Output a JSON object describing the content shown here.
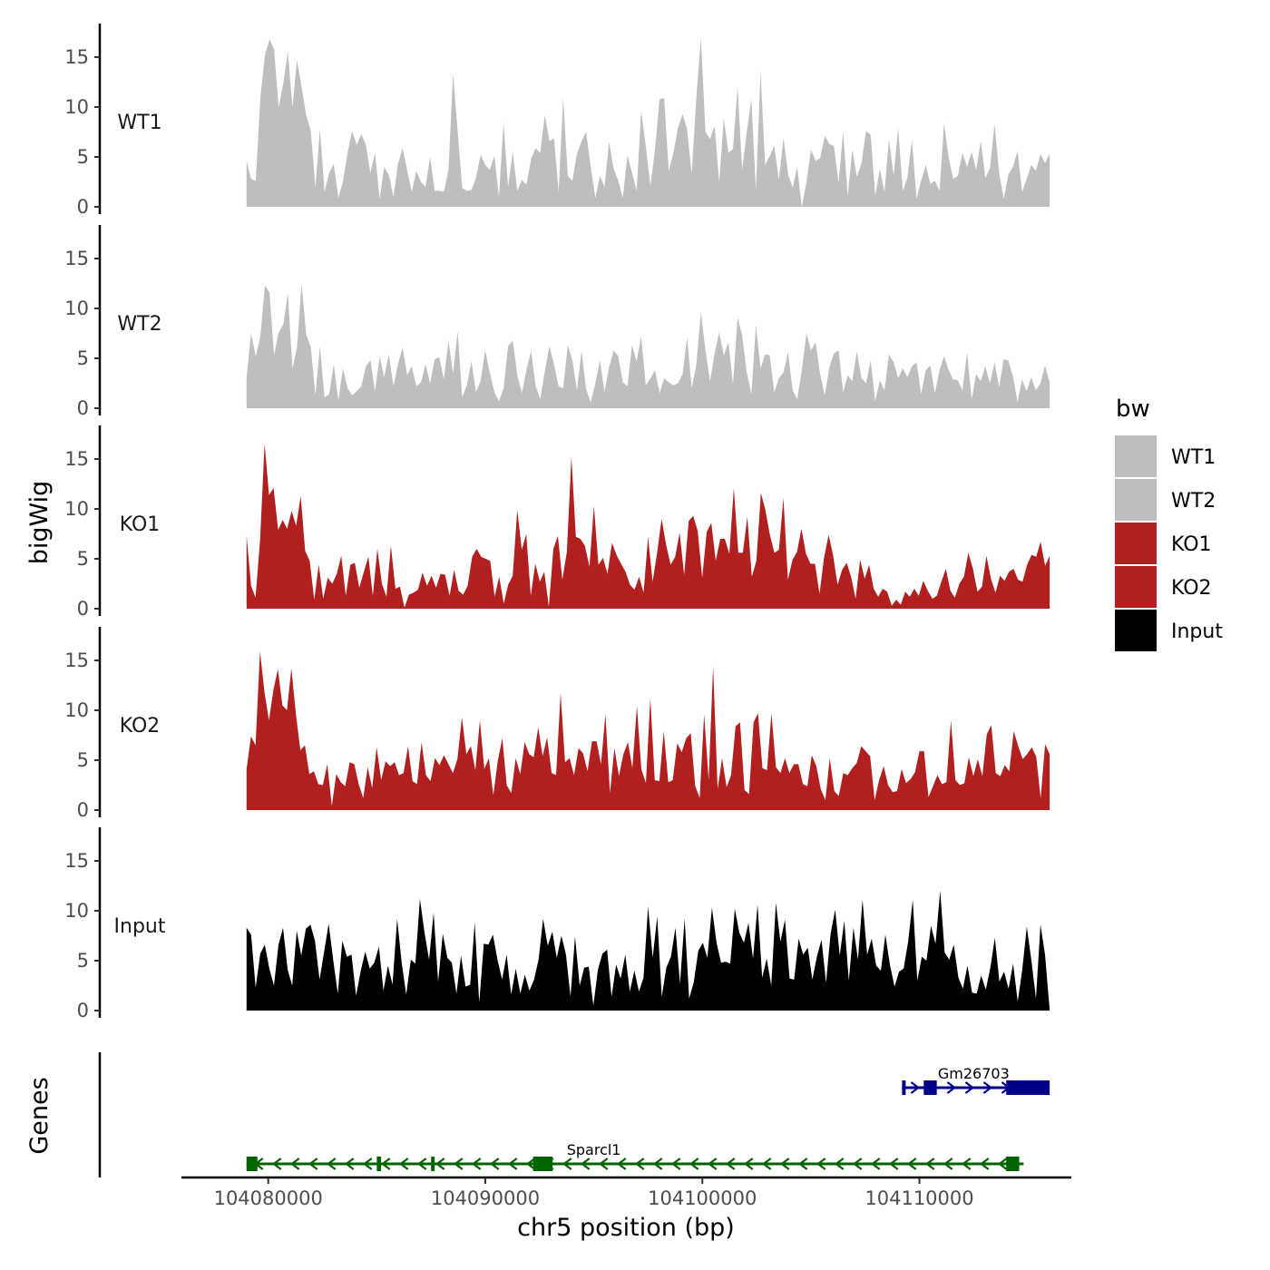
{
  "chart_data": {
    "type": "area",
    "ylabel": "bigWig",
    "genes_label": "Genes",
    "xlabel": "chr5 position (bp)",
    "xlim": [
      104076000,
      104117000
    ],
    "region": [
      104079000,
      104116000
    ],
    "x_ticks": [
      104080000,
      104090000,
      104100000,
      104110000
    ],
    "x_tick_labels": [
      "104080000",
      "104090000",
      "104100000",
      "104110000"
    ],
    "ylim": [
      0,
      18
    ],
    "y_ticks": [
      0,
      5,
      10,
      15
    ],
    "y_tick_labels": [
      "0",
      "5",
      "10",
      "15"
    ],
    "legend": {
      "title": "bw",
      "position": "right",
      "entries": [
        {
          "label": "WT1",
          "color": "#bebebe"
        },
        {
          "label": "WT2",
          "color": "#bebebe"
        },
        {
          "label": "KO1",
          "color": "#b21f1f"
        },
        {
          "label": "KO2",
          "color": "#b21f1f"
        },
        {
          "label": "Input",
          "color": "#000000"
        }
      ]
    },
    "series": [
      {
        "name": "WT1",
        "color": "#bebebe",
        "values": [
          4.6,
          2.8,
          2.6,
          10.9,
          15.2,
          16.8,
          15.8,
          10.0,
          12.4,
          15.5,
          10.0,
          14.7,
          12.0,
          9.2,
          7.6,
          1.9,
          7.8,
          1.5,
          3.4,
          4.3,
          0.9,
          2.5,
          5.4,
          7.6,
          6.2,
          7.3,
          6.2,
          3.4,
          5.4,
          0.8,
          4.0,
          3.2,
          1.0,
          4.3,
          5.9,
          3.7,
          1.5,
          3.6,
          2.5,
          2.0,
          5.0,
          1.6,
          1.6,
          1.5,
          3.7,
          13.3,
          7.6,
          1.9,
          1.6,
          1.7,
          2.9,
          5.2,
          4.2,
          3.7,
          5.1,
          1.0,
          8.4,
          2.0,
          5.5,
          1.6,
          2.7,
          2.2,
          4.8,
          5.9,
          5.4,
          9.2,
          6.6,
          6.9,
          1.5,
          10.9,
          3.1,
          2.6,
          5.3,
          6.6,
          7.5,
          4.0,
          0.9,
          3.1,
          2.0,
          6.5,
          3.8,
          2.6,
          0.9,
          5.2,
          3.4,
          1.6,
          9.6,
          6.1,
          2.1,
          5.7,
          10.8,
          10.9,
          3.6,
          5.4,
          7.9,
          9.3,
          7.8,
          3.3,
          10.8,
          16.9,
          7.5,
          6.8,
          8.1,
          2.4,
          8.9,
          5.4,
          5.8,
          12.0,
          3.7,
          7.5,
          10.8,
          1.7,
          13.6,
          4.2,
          5.1,
          6.1,
          2.7,
          6.9,
          3.3,
          1.9,
          4.0,
          0.0,
          2.5,
          5.7,
          4.6,
          4.9,
          7.1,
          6.3,
          6.1,
          2.4,
          7.6,
          1.1,
          5.7,
          3.0,
          4.4,
          7.6,
          7.2,
          1.1,
          3.8,
          1.5,
          6.8,
          3.1,
          7.9,
          1.6,
          2.9,
          6.7,
          0.8,
          2.6,
          4.2,
          2.3,
          2.6,
          1.6,
          8.4,
          4.9,
          2.8,
          3.1,
          5.4,
          4.0,
          5.5,
          3.7,
          6.6,
          2.9,
          3.9,
          8.3,
          3.4,
          0.8,
          3.2,
          4.0,
          5.6,
          1.5,
          2.8,
          4.2,
          3.6,
          5.3,
          4.4,
          5.3
        ]
      },
      {
        "name": "WT2",
        "color": "#bebebe",
        "values": [
          3.1,
          7.5,
          5.2,
          7.2,
          12.3,
          11.6,
          5.3,
          7.6,
          8.4,
          11.5,
          4.0,
          6.1,
          12.5,
          7.4,
          6.1,
          1.3,
          6.2,
          1.1,
          1.4,
          4.4,
          0.8,
          4.0,
          2.0,
          1.3,
          1.7,
          2.2,
          4.2,
          4.8,
          1.7,
          5.2,
          3.1,
          5.4,
          2.2,
          4.4,
          6.1,
          3.3,
          4.2,
          2.2,
          2.6,
          4.4,
          2.5,
          4.9,
          5.1,
          2.9,
          6.8,
          3.5,
          7.7,
          1.1,
          2.3,
          4.7,
          1.6,
          2.7,
          5.8,
          3.6,
          1.6,
          0.7,
          2.0,
          6.2,
          6.8,
          3.3,
          1.5,
          3.9,
          5.7,
          2.2,
          0.9,
          3.7,
          6.2,
          4.4,
          2.2,
          2.0,
          6.3,
          4.8,
          1.8,
          5.8,
          1.9,
          0.6,
          2.5,
          4.8,
          1.6,
          4.1,
          5.8,
          5.2,
          2.6,
          2.2,
          6.3,
          4.7,
          7.2,
          2.3,
          3.0,
          3.8,
          1.5,
          3.0,
          2.6,
          2.3,
          2.5,
          3.4,
          7.1,
          2.0,
          4.3,
          9.6,
          5.8,
          2.7,
          5.5,
          7.6,
          5.3,
          6.6,
          2.4,
          9.1,
          7.3,
          3.6,
          1.4,
          8.3,
          4.0,
          5.4,
          5.3,
          1.6,
          3.0,
          3.6,
          5.6,
          1.8,
          0.9,
          3.8,
          7.5,
          5.8,
          6.6,
          3.4,
          1.3,
          4.1,
          5.5,
          5.8,
          1.6,
          3.3,
          2.7,
          5.7,
          3.0,
          2.5,
          4.8,
          0.7,
          2.8,
          1.8,
          5.4,
          4.6,
          3.0,
          4.0,
          3.1,
          4.2,
          4.6,
          1.4,
          3.8,
          4.3,
          1.5,
          3.8,
          5.2,
          3.8,
          2.9,
          2.8,
          1.8,
          5.6,
          0.9,
          3.4,
          2.7,
          4.2,
          2.5,
          4.6,
          2.1,
          4.9,
          4.8,
          3.2,
          0.6,
          2.9,
          1.7,
          3.1,
          1.8,
          2.5,
          4.3,
          2.6
        ]
      },
      {
        "name": "KO1",
        "color": "#b21f1f",
        "values": [
          7.3,
          2.3,
          1.1,
          6.9,
          16.5,
          11.4,
          12.1,
          7.9,
          8.9,
          8.0,
          9.8,
          8.3,
          11.3,
          5.8,
          4.8,
          0.9,
          4.4,
          1.0,
          3.1,
          2.5,
          3.5,
          5.3,
          1.3,
          4.4,
          4.6,
          2.1,
          3.7,
          5.2,
          1.3,
          6.0,
          2.5,
          1.2,
          6.3,
          2.0,
          2.2,
          0.1,
          1.4,
          1.6,
          1.9,
          3.6,
          2.3,
          3.3,
          2.1,
          3.5,
          3.4,
          1.3,
          3.9,
          1.8,
          1.4,
          2.3,
          5.2,
          6.0,
          5.2,
          5.0,
          4.8,
          1.2,
          3.2,
          0.5,
          2.4,
          3.3,
          9.9,
          5.9,
          7.5,
          1.3,
          4.5,
          2.7,
          3.7,
          0.2,
          6.0,
          7.3,
          2.9,
          5.7,
          15.2,
          7.2,
          7.0,
          6.3,
          4.2,
          10.3,
          4.4,
          5.1,
          3.5,
          6.6,
          5.4,
          4.5,
          3.7,
          2.4,
          1.9,
          3.2,
          1.6,
          7.2,
          2.7,
          5.6,
          9.0,
          6.4,
          4.4,
          5.2,
          7.6,
          3.4,
          8.8,
          9.3,
          7.8,
          3.1,
          7.7,
          8.6,
          4.8,
          7.0,
          7.0,
          5.5,
          12.1,
          5.6,
          5.6,
          9.2,
          3.2,
          4.8,
          11.6,
          9.9,
          7.4,
          5.6,
          5.9,
          11.1,
          2.9,
          4.9,
          5.7,
          8.0,
          5.5,
          4.5,
          4.5,
          1.5,
          5.1,
          7.4,
          5.4,
          2.4,
          3.9,
          4.6,
          3.2,
          1.0,
          4.9,
          3.0,
          4.4,
          2.0,
          1.2,
          2.0,
          1.7,
          0.3,
          0.9,
          0.4,
          1.7,
          1.2,
          2.0,
          1.3,
          2.8,
          1.8,
          1.0,
          1.3,
          2.7,
          4.0,
          1.8,
          1.1,
          2.5,
          3.2,
          5.6,
          4.0,
          1.7,
          2.2,
          5.3,
          3.0,
          1.6,
          3.3,
          2.8,
          3.7,
          4.0,
          2.9,
          2.7,
          4.4,
          5.4,
          5.2,
          6.7,
          4.3,
          5.3
        ]
      },
      {
        "name": "KO2",
        "color": "#b21f1f",
        "values": [
          4.1,
          7.4,
          6.5,
          15.9,
          11.8,
          9.0,
          12.1,
          14.1,
          10.5,
          10.0,
          14.2,
          9.6,
          6.0,
          6.5,
          3.6,
          3.9,
          2.6,
          2.5,
          4.6,
          0.4,
          3.6,
          2.8,
          2.4,
          4.8,
          4.6,
          2.6,
          1.2,
          4.3,
          2.2,
          6.3,
          3.0,
          4.9,
          4.4,
          4.8,
          3.5,
          3.7,
          6.4,
          2.9,
          2.6,
          6.8,
          3.5,
          2.9,
          5.2,
          4.5,
          5.5,
          4.6,
          3.7,
          5.1,
          9.3,
          5.6,
          6.4,
          4.0,
          9.0,
          4.1,
          5.2,
          1.5,
          4.9,
          7.2,
          2.5,
          1.7,
          5.2,
          3.6,
          6.8,
          5.6,
          5.3,
          8.3,
          5.4,
          7.3,
          3.7,
          3.5,
          11.7,
          4.8,
          5.2,
          3.5,
          6.2,
          5.7,
          3.9,
          6.9,
          6.9,
          4.6,
          9.6,
          1.7,
          6.2,
          3.4,
          5.6,
          6.8,
          4.2,
          10.4,
          4.1,
          2.7,
          11.2,
          3.0,
          2.9,
          7.9,
          2.8,
          3.0,
          6.7,
          5.8,
          7.2,
          7.7,
          2.4,
          1.2,
          9.6,
          3.0,
          14.4,
          2.1,
          5.2,
          2.3,
          3.5,
          8.4,
          8.8,
          2.0,
          1.6,
          8.8,
          9.7,
          4.2,
          4.0,
          9.7,
          4.3,
          3.7,
          5.2,
          3.7,
          4.6,
          4.6,
          2.6,
          2.4,
          5.5,
          4.4,
          2.1,
          1.0,
          5.2,
          1.9,
          1.4,
          3.7,
          3.5,
          4.2,
          4.7,
          6.4,
          5.9,
          5.4,
          1.0,
          3.0,
          4.4,
          2.5,
          1.8,
          1.9,
          4.1,
          2.7,
          3.1,
          3.8,
          5.9,
          5.9,
          1.3,
          2.4,
          3.5,
          2.6,
          2.8,
          9.0,
          3.0,
          2.5,
          2.7,
          5.3,
          3.4,
          5.1,
          3.4,
          7.6,
          8.5,
          3.7,
          3.4,
          4.5,
          3.9,
          7.9,
          6.4,
          5.1,
          5.6,
          6.3,
          5.4,
          1.2,
          6.6,
          5.6
        ]
      },
      {
        "name": "Input",
        "color": "#000000",
        "values": [
          8.3,
          7.6,
          2.3,
          5.7,
          6.6,
          4.2,
          2.5,
          6.6,
          8.3,
          4.1,
          2.5,
          8.0,
          5.5,
          8.2,
          8.6,
          7.0,
          3.1,
          5.9,
          8.7,
          5.0,
          1.7,
          7.0,
          5.4,
          5.6,
          1.5,
          3.9,
          5.9,
          4.2,
          4.8,
          6.4,
          2.0,
          4.5,
          2.6,
          9.2,
          4.8,
          1.6,
          5.1,
          4.7,
          11.2,
          7.8,
          5.1,
          9.8,
          2.9,
          7.7,
          5.3,
          4.8,
          1.7,
          5.5,
          2.4,
          2.6,
          8.8,
          0.8,
          6.7,
          6.6,
          7.6,
          5.1,
          3.1,
          5.6,
          1.6,
          4.2,
          1.7,
          3.6,
          2.0,
          3.1,
          5.1,
          9.2,
          6.5,
          7.9,
          5.3,
          7.5,
          5.6,
          1.4,
          7.4,
          2.5,
          4.3,
          4.4,
          0.5,
          4.1,
          5.7,
          6.1,
          1.4,
          4.6,
          3.2,
          5.6,
          1.9,
          4.0,
          1.9,
          3.3,
          10.4,
          5.3,
          9.4,
          1.4,
          4.3,
          5.4,
          8.3,
          2.7,
          9.2,
          1.2,
          2.8,
          6.0,
          6.8,
          5.3,
          10.3,
          6.8,
          4.8,
          4.9,
          4.7,
          10.2,
          7.8,
          6.8,
          8.8,
          5.2,
          10.6,
          3.3,
          5.2,
          2.5,
          10.8,
          6.9,
          9.1,
          3.2,
          3.1,
          7.2,
          5.6,
          6.3,
          3.1,
          5.4,
          7.1,
          2.8,
          7.7,
          10.1,
          5.5,
          9.0,
          3.0,
          8.3,
          5.1,
          11.1,
          5.6,
          7.2,
          4.5,
          4.0,
          7.6,
          4.6,
          2.4,
          3.9,
          4.2,
          6.9,
          11.1,
          3.0,
          5.4,
          5.0,
          8.5,
          6.7,
          12.0,
          5.8,
          5.1,
          6.6,
          3.3,
          2.2,
          4.5,
          1.8,
          1.7,
          3.5,
          2.1,
          4.3,
          7.3,
          2.9,
          3.9,
          2.2,
          4.7,
          0.9,
          4.1,
          8.4,
          5.0,
          1.2,
          8.6,
          5.6,
          0.1
        ]
      }
    ],
    "genes": [
      {
        "name": "Gm26703",
        "strand": "+",
        "color": "#00008b",
        "start": 104109200,
        "end": 104116000,
        "exons": [
          [
            104109200,
            104109350
          ],
          [
            104110200,
            104110800
          ],
          [
            104114000,
            104116000
          ]
        ]
      },
      {
        "name": "Sparcl1",
        "strand": "-",
        "color": "#006400",
        "start": 104079000,
        "end": 104114800,
        "exons": [
          [
            104079000,
            104079500
          ],
          [
            104085000,
            104085200
          ],
          [
            104087500,
            104087600
          ],
          [
            104092200,
            104093100
          ],
          [
            104114000,
            104114600
          ]
        ]
      }
    ]
  }
}
